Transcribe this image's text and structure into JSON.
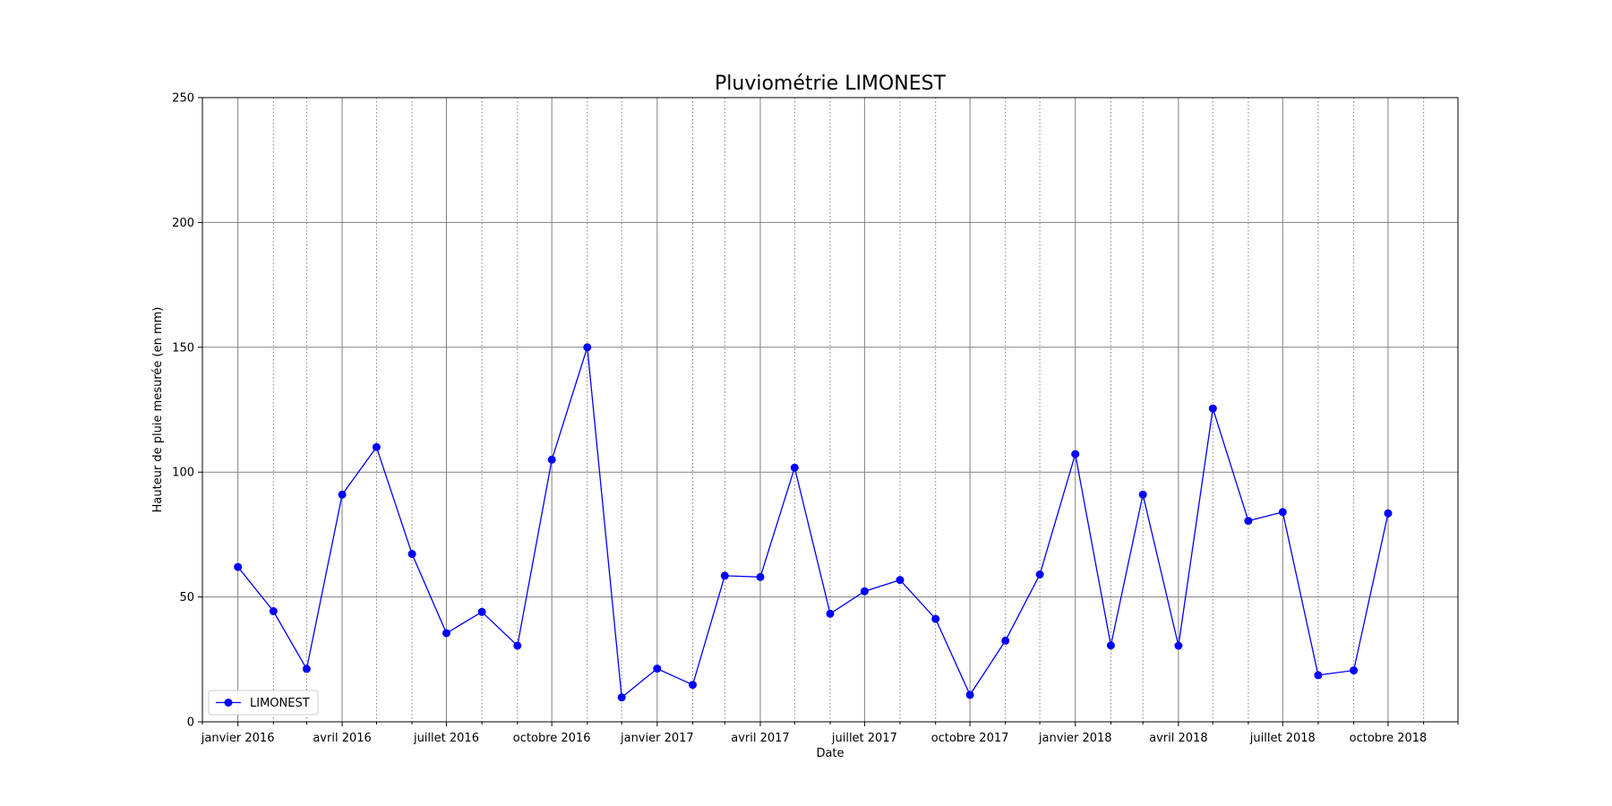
{
  "chart_data": {
    "type": "line",
    "title": "Pluviométrie LIMONEST",
    "xlabel": "Date",
    "ylabel": "Hauteur de pluie mesurée (en mm)",
    "ylim": [
      0,
      250
    ],
    "yticks": [
      0,
      50,
      100,
      150,
      200,
      250
    ],
    "xlim": [
      "2015-12-01",
      "2018-12-01"
    ],
    "xticks": [
      {
        "date": "2016-01-01",
        "label": "janvier 2016"
      },
      {
        "date": "2016-04-01",
        "label": "avril 2016"
      },
      {
        "date": "2016-07-01",
        "label": "juillet 2016"
      },
      {
        "date": "2016-10-01",
        "label": "octobre 2016"
      },
      {
        "date": "2017-01-01",
        "label": "janvier 2017"
      },
      {
        "date": "2017-04-01",
        "label": "avril 2017"
      },
      {
        "date": "2017-07-01",
        "label": "juillet 2017"
      },
      {
        "date": "2017-10-01",
        "label": "octobre 2017"
      },
      {
        "date": "2018-01-01",
        "label": "janvier 2018"
      },
      {
        "date": "2018-04-01",
        "label": "avril 2018"
      },
      {
        "date": "2018-07-01",
        "label": "juillet 2018"
      },
      {
        "date": "2018-10-01",
        "label": "octobre 2018"
      }
    ],
    "grid": true,
    "minor_grid": "monthly, dotted",
    "legend_position": "lower-left",
    "series": [
      {
        "name": "LIMONEST",
        "color": "#0000ff",
        "marker": "circle",
        "x": [
          "2016-01-01",
          "2016-02-01",
          "2016-03-01",
          "2016-04-01",
          "2016-05-01",
          "2016-06-01",
          "2016-07-01",
          "2016-08-01",
          "2016-09-01",
          "2016-10-01",
          "2016-11-01",
          "2016-12-01",
          "2017-01-01",
          "2017-02-01",
          "2017-03-01",
          "2017-04-01",
          "2017-05-01",
          "2017-06-01",
          "2017-07-01",
          "2017-08-01",
          "2017-09-01",
          "2017-10-01",
          "2017-11-01",
          "2017-12-01",
          "2018-01-01",
          "2018-02-01",
          "2018-03-01",
          "2018-04-01",
          "2018-05-01",
          "2018-06-01",
          "2018-07-01",
          "2018-08-01",
          "2018-09-01",
          "2018-10-01"
        ],
        "values": [
          62,
          44.3,
          21.2,
          91,
          110,
          67.2,
          35.5,
          44,
          30.5,
          105,
          150,
          9.8,
          21.3,
          14.8,
          58.5,
          58,
          101.8,
          43.3,
          52.3,
          56.8,
          41.2,
          10.8,
          32.5,
          59,
          107.2,
          30.6,
          91,
          30.5,
          125.5,
          80.5,
          84,
          18.7,
          20.6,
          83.5
        ]
      }
    ]
  }
}
